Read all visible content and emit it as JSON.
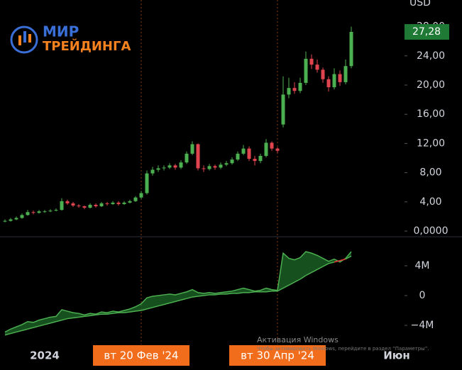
{
  "logo": {
    "line1": "МИР",
    "line2": "ТРЕЙДИНГА"
  },
  "watermark": {
    "title": "Активация Windows",
    "text": "Чтобы активировать Windows, перейдите в раздел “Параметры”."
  },
  "chart_data": [
    {
      "type": "candlestick",
      "unit": "USD",
      "categories": [
        null,
        null,
        null,
        null,
        null,
        null,
        null,
        "2024",
        null,
        null,
        null,
        null,
        null,
        null,
        null,
        null,
        null,
        null,
        null,
        null,
        null,
        null,
        null,
        null,
        "вт 20 Фев '24",
        null,
        null,
        null,
        null,
        null,
        null,
        null,
        null,
        null,
        null,
        null,
        null,
        null,
        null,
        null,
        null,
        null,
        null,
        null,
        null,
        null,
        null,
        null,
        "вт 30 Апр '24",
        null,
        null,
        null,
        null,
        null,
        null,
        null,
        null,
        null,
        null,
        null,
        null,
        null,
        null,
        null,
        null,
        null,
        null,
        null,
        null,
        "Июн"
      ],
      "open": [
        1.3,
        1.4,
        1.6,
        1.8,
        2.2,
        2.6,
        2.5,
        2.7,
        2.7,
        2.8,
        2.9,
        4.1,
        3.8,
        3.5,
        3.4,
        3.2,
        3.6,
        3.4,
        3.8,
        3.7,
        3.9,
        3.7,
        3.9,
        4.1,
        4.6,
        5.2,
        7.9,
        8.4,
        8.6,
        8.7,
        9.0,
        8.7,
        9.4,
        10.6,
        11.9,
        8.6,
        8.5,
        8.9,
        8.7,
        9.1,
        9.3,
        9.8,
        10.6,
        11.3,
        9.9,
        9.6,
        10.3,
        12.1,
        11.3,
        14.6,
        18.7,
        19.6,
        19.2,
        20.3,
        23.6,
        22.8,
        22.1,
        20.8,
        19.7,
        21.5,
        20.4,
        22.6,
        null,
        null,
        null,
        null,
        null,
        null,
        null,
        null
      ],
      "high": [
        1.6,
        1.8,
        2.0,
        2.4,
        2.9,
        2.8,
        2.9,
        2.9,
        3.0,
        3.1,
        4.5,
        4.3,
        4.0,
        3.7,
        3.5,
        3.8,
        3.8,
        4.0,
        4.0,
        4.1,
        4.1,
        4.1,
        4.3,
        4.8,
        5.5,
        8.3,
        8.8,
        9.0,
        9.0,
        9.3,
        9.2,
        9.7,
        10.9,
        12.3,
        12.0,
        9.0,
        9.2,
        9.1,
        9.4,
        9.6,
        10.1,
        10.9,
        11.8,
        11.6,
        10.3,
        10.6,
        12.6,
        12.3,
        11.5,
        21.2,
        21.0,
        20.4,
        21.0,
        24.6,
        24.2,
        23.5,
        22.4,
        21.2,
        22.3,
        22.0,
        23.5,
        28.0,
        null,
        null,
        null,
        null,
        null,
        null,
        null,
        null
      ],
      "low": [
        1.2,
        1.3,
        1.5,
        1.7,
        2.1,
        2.3,
        2.4,
        2.5,
        2.6,
        2.7,
        2.8,
        3.6,
        3.3,
        3.2,
        3.0,
        3.1,
        3.2,
        3.3,
        3.5,
        3.6,
        3.5,
        3.6,
        3.8,
        4.0,
        4.4,
        5.0,
        7.6,
        8.1,
        8.3,
        8.5,
        8.4,
        8.5,
        9.2,
        10.4,
        8.3,
        8.1,
        8.3,
        8.4,
        8.5,
        8.9,
        9.1,
        9.6,
        10.4,
        9.6,
        9.0,
        9.3,
        10.1,
        11.0,
        10.7,
        14.2,
        18.2,
        18.8,
        18.9,
        20.0,
        22.2,
        21.7,
        20.3,
        19.1,
        19.4,
        19.9,
        20.1,
        22.3,
        null,
        null,
        null,
        null,
        null,
        null,
        null,
        null
      ],
      "close": [
        1.4,
        1.6,
        1.8,
        2.2,
        2.6,
        2.5,
        2.7,
        2.7,
        2.8,
        2.9,
        4.1,
        3.8,
        3.5,
        3.4,
        3.2,
        3.6,
        3.4,
        3.8,
        3.7,
        3.9,
        3.7,
        3.9,
        4.1,
        4.6,
        5.2,
        7.9,
        8.4,
        8.6,
        8.7,
        9.0,
        8.7,
        9.4,
        10.6,
        11.9,
        8.6,
        8.5,
        8.9,
        8.7,
        9.1,
        9.3,
        9.8,
        10.6,
        11.3,
        9.9,
        9.6,
        10.3,
        12.1,
        11.3,
        11.0,
        18.7,
        19.6,
        19.2,
        20.3,
        23.6,
        22.8,
        22.1,
        20.8,
        19.7,
        21.5,
        20.4,
        22.6,
        27.28,
        null,
        null,
        null,
        null,
        null,
        null,
        null,
        null
      ],
      "up_color": "#4caf50",
      "down_color": "#e0454f",
      "ylim": [
        -0.58,
        31.65
      ],
      "yticks": [
        {
          "value": 0,
          "label": "0,0000"
        },
        {
          "value": 4,
          "label": "4,00"
        },
        {
          "value": 8,
          "label": "8,00"
        },
        {
          "value": 12,
          "label": "12,00"
        },
        {
          "value": 16,
          "label": "16,00"
        },
        {
          "value": 20,
          "label": "20,00"
        },
        {
          "value": 24,
          "label": "24,00"
        },
        {
          "value": 28,
          "label": "28,00"
        }
      ],
      "last_price": {
        "value": 27.28,
        "label": "27,28",
        "color": "#1e7a34"
      },
      "markers": {
        "color": "#f26d1b",
        "categories": [
          24,
          48
        ]
      }
    },
    {
      "type": "line",
      "series": [
        {
          "color": "#4caf50",
          "values": [
            -4900000,
            -4500000,
            -4200000,
            -3900000,
            -3500000,
            -3600000,
            -3300000,
            -3100000,
            -2900000,
            -2800000,
            -1900000,
            -2100000,
            -2300000,
            -2400000,
            -2600000,
            -2400000,
            -2500000,
            -2200000,
            -2300000,
            -2100000,
            -2200000,
            -2000000,
            -1800000,
            -1500000,
            -1100000,
            -300000,
            -100000,
            0,
            100000,
            200000,
            100000,
            300000,
            500000,
            800000,
            400000,
            300000,
            400000,
            300000,
            400000,
            500000,
            600000,
            800000,
            1000000,
            800000,
            600000,
            700000,
            1000000,
            800000,
            700000,
            5700000,
            5000000,
            4800000,
            5100000,
            5900000,
            5700000,
            5400000,
            5000000,
            4600000,
            4900000,
            4500000,
            5000000,
            5900000,
            null,
            null,
            null,
            null,
            null,
            null,
            null,
            null
          ]
        },
        {
          "color": "#4caf50",
          "color_above": "#e53935",
          "values": [
            -5300000,
            -5100000,
            -4900000,
            -4700000,
            -4500000,
            -4300000,
            -4100000,
            -3900000,
            -3700000,
            -3500000,
            -3300000,
            -3100000,
            -3000000,
            -2900000,
            -2800000,
            -2700000,
            -2600000,
            -2500000,
            -2500000,
            -2400000,
            -2300000,
            -2300000,
            -2200000,
            -2100000,
            -2000000,
            -1800000,
            -1600000,
            -1400000,
            -1200000,
            -1000000,
            -800000,
            -600000,
            -400000,
            -200000,
            -100000,
            0,
            100000,
            100000,
            200000,
            200000,
            300000,
            300000,
            400000,
            400000,
            500000,
            500000,
            500000,
            600000,
            600000,
            1000000,
            1400000,
            1800000,
            2200000,
            2700000,
            3100000,
            3500000,
            3900000,
            4300000,
            4500000,
            4700000,
            4900000,
            5300000,
            null,
            null,
            null,
            null,
            null,
            null,
            null,
            null
          ]
        }
      ],
      "fill_color": "#1f6b2a",
      "ylim": [
        -6190000,
        7520000
      ],
      "yticks": [
        {
          "value": -4000000,
          "label": "−4M"
        },
        0,
        {
          "value": 4000000,
          "label": "4M"
        }
      ]
    }
  ]
}
